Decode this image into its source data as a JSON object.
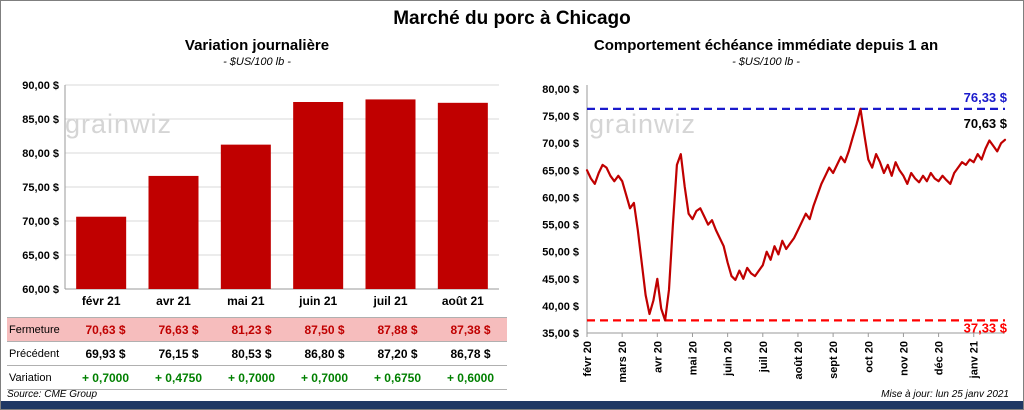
{
  "page": {
    "title": "Marché du porc à Chicago",
    "watermark": "grainwiz",
    "source": "Source: CME Group",
    "updated": "Mise à jour: lun 25 janv 2021"
  },
  "colors": {
    "bar": "#C00000",
    "line": "#C00000",
    "high_line": "#1A1ACC",
    "low_line": "#FF0000",
    "grid": "#D9D9D9",
    "axis": "#9A9A9A",
    "fermeture_bg": "#F6BDBD",
    "fermeture_text": "#C00000",
    "precedent_text": "#000000",
    "variation_text": "#008000",
    "strip": "#1F3864"
  },
  "chart_data": [
    {
      "type": "bar",
      "title": "Variation journalière",
      "subtitle": "- $US/100 lb -",
      "categories": [
        "févr 21",
        "avr 21",
        "mai 21",
        "juin 21",
        "juil 21",
        "août 21"
      ],
      "values": [
        70.63,
        76.63,
        81.23,
        87.5,
        87.88,
        87.38
      ],
      "ylim": [
        60,
        90
      ],
      "ytick_step": 5,
      "ylabel": "$US/100 lb",
      "grid": true,
      "table": {
        "rows": [
          {
            "label": "Fermeture",
            "style": "fermeture",
            "values": [
              "70,63  $",
              "76,63  $",
              "81,23  $",
              "87,50  $",
              "87,88  $",
              "87,38  $"
            ]
          },
          {
            "label": "Précédent",
            "style": "precedent",
            "values": [
              "69,93  $",
              "76,15  $",
              "80,53  $",
              "86,80  $",
              "87,20  $",
              "86,78  $"
            ]
          },
          {
            "label": "Variation",
            "style": "variation",
            "values": [
              "+ 0,7000",
              "+ 0,4750",
              "+ 0,7000",
              "+ 0,7000",
              "+ 0,6750",
              "+ 0,6000"
            ]
          }
        ]
      }
    },
    {
      "type": "line",
      "title": "Comportement échéance immédiate depuis 1 an",
      "subtitle": "- $US/100 lb -",
      "x_labels": [
        "févr 20",
        "mars 20",
        "avr 20",
        "mai 20",
        "juin 20",
        "juil 20",
        "août 20",
        "sept 20",
        "oct 20",
        "nov 20",
        "déc 20",
        "janv 21"
      ],
      "values": [
        65.0,
        63.5,
        62.5,
        64.5,
        66.0,
        65.5,
        64.0,
        63.0,
        64.0,
        63.0,
        60.5,
        58.0,
        59.0,
        54.0,
        48.0,
        42.0,
        38.5,
        41.0,
        45.0,
        39.5,
        37.33,
        43.0,
        55.0,
        66.0,
        68.0,
        62.0,
        57.0,
        56.0,
        57.5,
        58.0,
        56.5,
        55.0,
        55.8,
        54.0,
        52.5,
        51.0,
        48.0,
        45.5,
        44.8,
        46.5,
        45.0,
        47.0,
        46.0,
        45.5,
        46.5,
        47.5,
        50.0,
        48.5,
        51.0,
        49.5,
        52.0,
        50.5,
        51.5,
        52.5,
        54.0,
        55.5,
        57.0,
        56.0,
        58.5,
        60.5,
        62.5,
        64.0,
        65.5,
        64.5,
        66.0,
        67.5,
        66.5,
        68.5,
        71.0,
        73.5,
        76.33,
        71.5,
        67.0,
        65.5,
        68.0,
        66.5,
        64.5,
        66.0,
        64.0,
        66.5,
        65.0,
        64.0,
        62.5,
        64.5,
        63.5,
        62.8,
        64.0,
        63.0,
        64.5,
        63.5,
        63.0,
        64.0,
        63.2,
        62.5,
        64.5,
        65.5,
        66.5,
        66.0,
        67.0,
        66.5,
        68.0,
        67.0,
        69.0,
        70.5,
        69.5,
        68.5,
        70.0,
        70.63
      ],
      "ylim": [
        35,
        80
      ],
      "ytick_step": 5,
      "grid": false,
      "legend": "none",
      "high_marker": {
        "value": 76.33,
        "label": "76,33 $"
      },
      "low_marker": {
        "value": 37.33,
        "label": "37,33 $"
      },
      "last_value": 70.63,
      "last_label": "70,63 $"
    }
  ]
}
